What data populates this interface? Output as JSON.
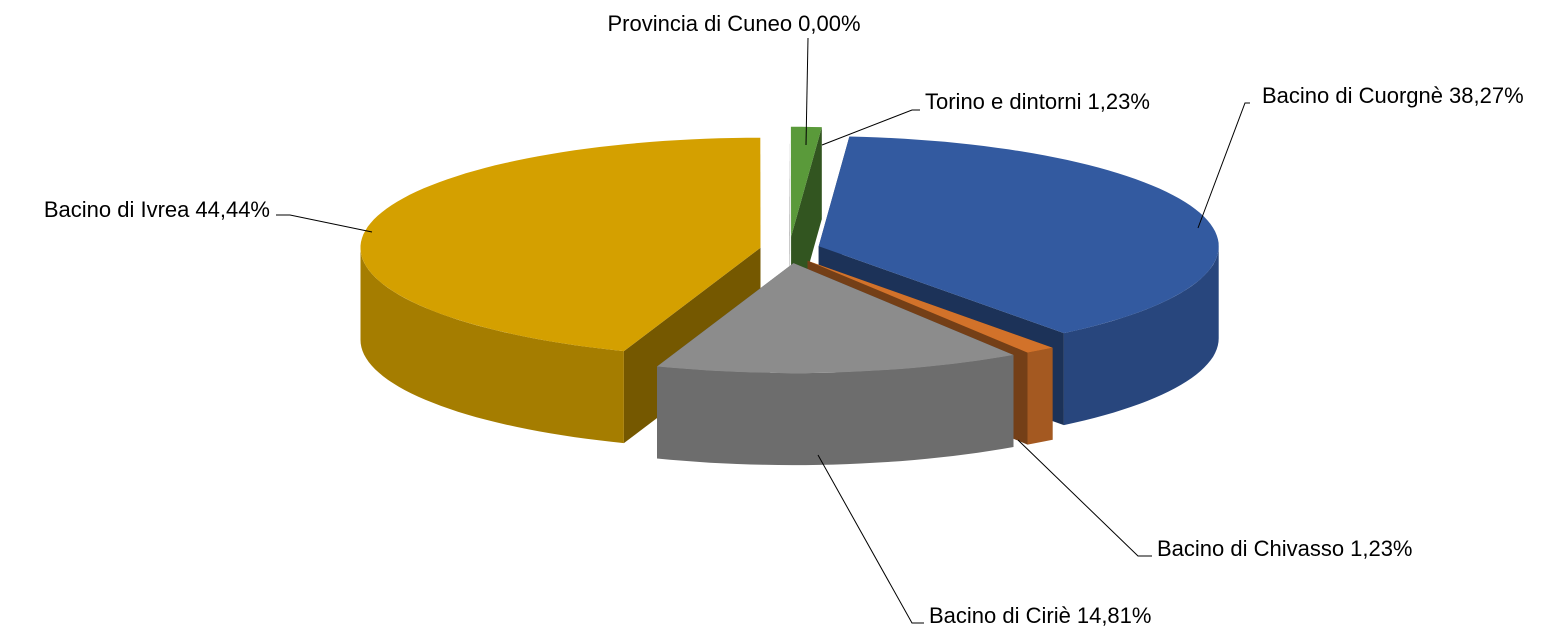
{
  "chart_data": {
    "type": "pie3d",
    "categories": [
      "Bacino di Cuorgnè",
      "Bacino di Chivasso",
      "Bacino di Ciriè",
      "Bacino di Ivrea",
      "Provincia di Cuneo",
      "Torino e dintorni"
    ],
    "values": [
      38.27,
      1.23,
      14.81,
      44.44,
      0.0,
      1.23
    ],
    "value_labels": [
      "38,27%",
      "1,23%",
      "14,81%",
      "44,44%",
      "0,00%",
      "1,23%"
    ],
    "colors": [
      "#335aa0",
      "#d2722a",
      "#8c8c8c",
      "#d4a000",
      "#6a6a6a",
      "#5a9a3a"
    ]
  }
}
